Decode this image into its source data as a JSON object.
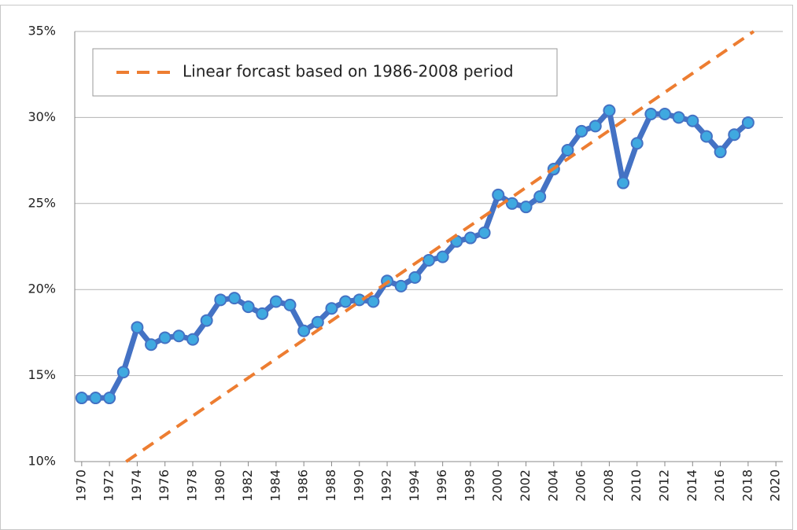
{
  "chart_data": {
    "type": "line",
    "x": [
      1970,
      1971,
      1972,
      1973,
      1974,
      1975,
      1976,
      1977,
      1978,
      1979,
      1980,
      1981,
      1982,
      1983,
      1984,
      1985,
      1986,
      1987,
      1988,
      1989,
      1990,
      1991,
      1992,
      1993,
      1994,
      1995,
      1996,
      1997,
      1998,
      1999,
      2000,
      2001,
      2002,
      2003,
      2004,
      2005,
      2006,
      2007,
      2008,
      2009,
      2010,
      2011,
      2012,
      2013,
      2014,
      2015,
      2016,
      2017,
      2018
    ],
    "series": [
      {
        "color": "#4472c4",
        "marker_color": "#3fa9e0",
        "values": [
          13.7,
          13.7,
          13.7,
          15.2,
          17.8,
          16.8,
          17.2,
          17.3,
          17.1,
          18.2,
          19.4,
          19.5,
          19.0,
          18.6,
          19.3,
          19.1,
          17.6,
          18.1,
          18.9,
          19.3,
          19.4,
          19.3,
          20.5,
          20.2,
          20.7,
          21.7,
          21.9,
          22.8,
          23.0,
          23.3,
          25.5,
          25.0,
          24.8,
          25.4,
          27.0,
          28.1,
          29.2,
          29.5,
          30.4,
          26.2,
          28.5,
          30.2,
          30.2,
          30.0,
          29.8,
          28.9,
          28.0,
          29.0,
          29.7
        ]
      },
      {
        "name": "Linear forcast based on 1986-2008 period",
        "color": "#ed7d31",
        "dashed": true,
        "x": [
          1973.2,
          2018.4
        ],
        "values": [
          10,
          35
        ]
      }
    ],
    "xlim": [
      1969.5,
      2020.5
    ],
    "xticks": [
      1970,
      1972,
      1974,
      1976,
      1978,
      1980,
      1982,
      1984,
      1986,
      1988,
      1990,
      1992,
      1994,
      1996,
      1998,
      2000,
      2002,
      2004,
      2006,
      2008,
      2010,
      2012,
      2014,
      2016,
      2018,
      2020
    ],
    "ylim": [
      10,
      35
    ],
    "yticks": [
      {
        "value": 10,
        "label": "10%"
      },
      {
        "value": 15,
        "label": "15%"
      },
      {
        "value": 20,
        "label": "20%"
      },
      {
        "value": 25,
        "label": "25%"
      },
      {
        "value": 30,
        "label": "30%"
      },
      {
        "value": 35,
        "label": "35%"
      }
    ],
    "grid": true,
    "legend": "top-left"
  }
}
